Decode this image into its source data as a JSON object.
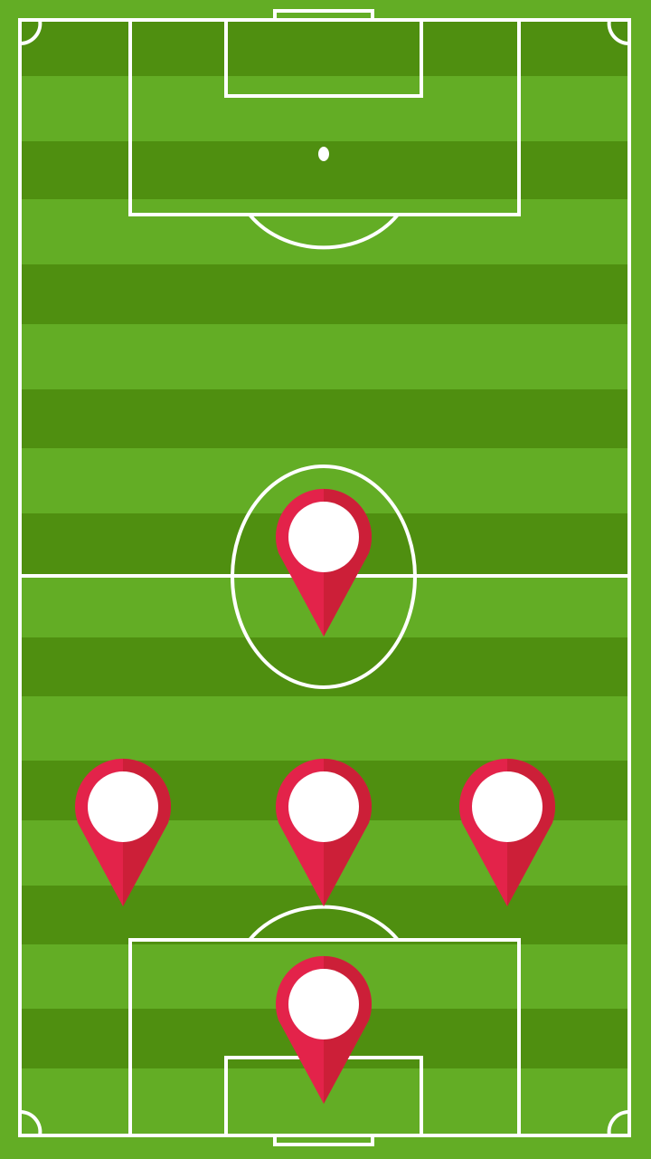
{
  "pitch": {
    "colors": {
      "grass_light": "#63ad25",
      "grass_dark": "#4f8f10",
      "line": "#ffffff"
    }
  },
  "markers": {
    "colors": {
      "pin_light": "#e3234a",
      "pin_dark": "#cc1f38",
      "disc": "#ffffff"
    },
    "players": [
      {
        "id": "forward",
        "icon": "location-pin-icon"
      },
      {
        "id": "midfielder-left",
        "icon": "location-pin-icon"
      },
      {
        "id": "midfielder-center",
        "icon": "location-pin-icon"
      },
      {
        "id": "midfielder-right",
        "icon": "location-pin-icon"
      },
      {
        "id": "goalkeeper",
        "icon": "location-pin-icon"
      }
    ]
  }
}
